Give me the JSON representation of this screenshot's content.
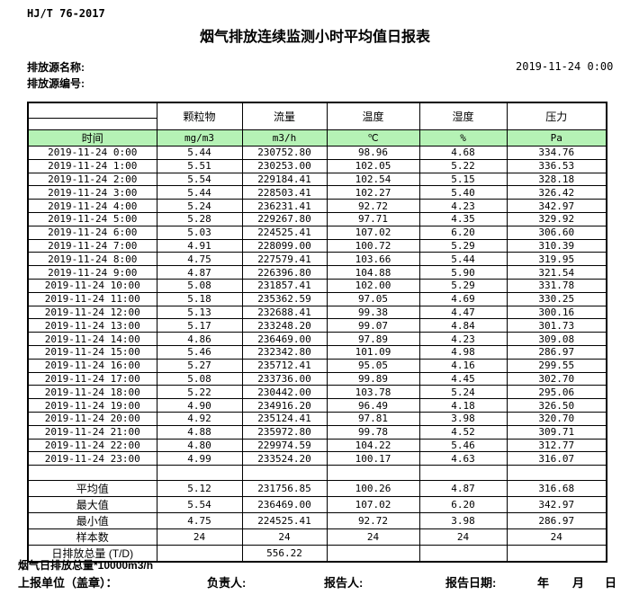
{
  "page": {
    "standard": "HJ/T 76-2017",
    "title": "烟气排放连续监测小时平均值日报表",
    "source_name_label": "排放源名称:",
    "source_code_label": "排放源编号:",
    "datetime": "2019-11-24 0:00"
  },
  "table": {
    "param_headers": [
      "颗粒物",
      "流量",
      "温度",
      "湿度",
      "压力"
    ],
    "units_row": {
      "time_label": "时间",
      "units": [
        "mg/m3",
        "m3/h",
        "℃",
        "%",
        "Pa"
      ]
    },
    "rows": [
      {
        "time": "2019-11-24 0:00",
        "values": [
          "5.44",
          "230752.80",
          "98.96",
          "4.68",
          "334.76"
        ]
      },
      {
        "time": "2019-11-24 1:00",
        "values": [
          "5.51",
          "230253.00",
          "102.05",
          "5.22",
          "336.53"
        ]
      },
      {
        "time": "2019-11-24 2:00",
        "values": [
          "5.54",
          "229184.41",
          "102.54",
          "5.15",
          "328.18"
        ]
      },
      {
        "time": "2019-11-24 3:00",
        "values": [
          "5.44",
          "228503.41",
          "102.27",
          "5.40",
          "326.42"
        ]
      },
      {
        "time": "2019-11-24 4:00",
        "values": [
          "5.24",
          "236231.41",
          "92.72",
          "4.23",
          "342.97"
        ]
      },
      {
        "time": "2019-11-24 5:00",
        "values": [
          "5.28",
          "229267.80",
          "97.71",
          "4.35",
          "329.92"
        ]
      },
      {
        "time": "2019-11-24 6:00",
        "values": [
          "5.03",
          "224525.41",
          "107.02",
          "6.20",
          "306.60"
        ]
      },
      {
        "time": "2019-11-24 7:00",
        "values": [
          "4.91",
          "228099.00",
          "100.72",
          "5.29",
          "310.39"
        ]
      },
      {
        "time": "2019-11-24 8:00",
        "values": [
          "4.75",
          "227579.41",
          "103.66",
          "5.44",
          "319.95"
        ]
      },
      {
        "time": "2019-11-24 9:00",
        "values": [
          "4.87",
          "226396.80",
          "104.88",
          "5.90",
          "321.54"
        ]
      },
      {
        "time": "2019-11-24 10:00",
        "values": [
          "5.08",
          "231857.41",
          "102.00",
          "5.29",
          "331.78"
        ]
      },
      {
        "time": "2019-11-24 11:00",
        "values": [
          "5.18",
          "235362.59",
          "97.05",
          "4.69",
          "330.25"
        ]
      },
      {
        "time": "2019-11-24 12:00",
        "values": [
          "5.13",
          "232688.41",
          "99.38",
          "4.47",
          "300.16"
        ]
      },
      {
        "time": "2019-11-24 13:00",
        "values": [
          "5.17",
          "233248.20",
          "99.07",
          "4.84",
          "301.73"
        ]
      },
      {
        "time": "2019-11-24 14:00",
        "values": [
          "4.86",
          "236469.00",
          "97.89",
          "4.23",
          "309.08"
        ]
      },
      {
        "time": "2019-11-24 15:00",
        "values": [
          "5.46",
          "232342.80",
          "101.09",
          "4.98",
          "286.97"
        ]
      },
      {
        "time": "2019-11-24 16:00",
        "values": [
          "5.27",
          "235712.41",
          "95.05",
          "4.16",
          "299.55"
        ]
      },
      {
        "time": "2019-11-24 17:00",
        "values": [
          "5.08",
          "233736.00",
          "99.89",
          "4.45",
          "302.70"
        ]
      },
      {
        "time": "2019-11-24 18:00",
        "values": [
          "5.22",
          "230442.00",
          "103.78",
          "5.24",
          "295.06"
        ]
      },
      {
        "time": "2019-11-24 19:00",
        "values": [
          "4.90",
          "234916.20",
          "96.49",
          "4.18",
          "326.50"
        ]
      },
      {
        "time": "2019-11-24 20:00",
        "values": [
          "4.92",
          "235124.41",
          "97.81",
          "3.98",
          "320.70"
        ]
      },
      {
        "time": "2019-11-24 21:00",
        "values": [
          "4.88",
          "235972.80",
          "99.78",
          "4.52",
          "309.71"
        ]
      },
      {
        "time": "2019-11-24 22:00",
        "values": [
          "4.80",
          "229974.59",
          "104.22",
          "5.46",
          "312.77"
        ]
      },
      {
        "time": "2019-11-24 23:00",
        "values": [
          "4.99",
          "233524.20",
          "100.17",
          "4.63",
          "316.07"
        ]
      }
    ],
    "summary_rows": [
      {
        "label": "平均值",
        "values": [
          "5.12",
          "231756.85",
          "100.26",
          "4.87",
          "316.68"
        ]
      },
      {
        "label": "最大值",
        "values": [
          "5.54",
          "236469.00",
          "107.02",
          "6.20",
          "342.97"
        ]
      },
      {
        "label": "最小值",
        "values": [
          "4.75",
          "224525.41",
          "92.72",
          "3.98",
          "286.97"
        ]
      },
      {
        "label": "样本数",
        "values": [
          "24",
          "24",
          "24",
          "24",
          "24"
        ]
      },
      {
        "label": "日排放总量 (T/D)",
        "values": [
          "",
          "556.22",
          "",
          "",
          ""
        ]
      }
    ]
  },
  "footer": {
    "note": "烟气日排放总量*10000m3/h",
    "report_unit_label": "上报单位（盖章）：",
    "responsible_label": "负责人:",
    "reporter_label": "报告人:",
    "report_date_label": "报告日期:",
    "year_label": "年",
    "month_label": "月",
    "day_label": "日"
  },
  "colors": {
    "header_row_green": "#b5f2b5"
  }
}
